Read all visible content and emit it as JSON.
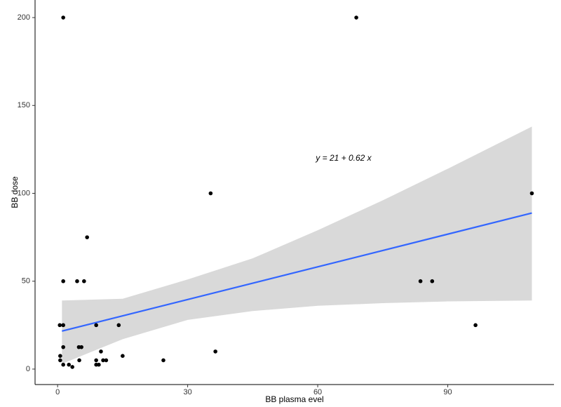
{
  "chart_data": {
    "type": "scatter",
    "xlabel": "BB plasma evel",
    "ylabel": "BB dose",
    "annotation": "y = 21 + 0.62 x",
    "color": "#000000",
    "x": [
      1.3,
      68.9,
      35.3,
      109.4,
      6.8,
      1.3,
      4.5,
      6.1,
      83.7,
      86.4,
      0.5,
      1.3,
      8.9,
      14.1,
      96.4,
      1.3,
      4.9,
      5.5,
      36.4,
      10,
      0.6,
      15,
      0.6,
      5,
      8.9,
      10.5,
      11.2,
      24.4,
      1.3,
      2.6,
      8.9,
      9.5,
      3.4
    ],
    "values": [
      200,
      200,
      100,
      100,
      75,
      50,
      50,
      50,
      50,
      50,
      25,
      25,
      25,
      25,
      25,
      12.5,
      12.5,
      12.5,
      10,
      10,
      7.5,
      7.5,
      5,
      5,
      5,
      5,
      5,
      5,
      2.5,
      2.5,
      2.5,
      2.5,
      1.2
    ],
    "fit": {
      "color": "#3366ff",
      "x": [
        1,
        109.4
      ],
      "values": [
        21.6,
        88.8
      ]
    },
    "band": {
      "color": "#d9d9d9",
      "x": [
        1,
        15,
        30,
        45,
        60,
        75,
        90,
        109.4
      ],
      "lower": [
        3,
        17,
        28,
        33,
        36,
        37.5,
        38.5,
        39
      ],
      "upper": [
        39,
        40,
        51,
        63,
        79,
        96,
        114,
        138
      ]
    },
    "xlim": [
      -5.2,
      114.5
    ],
    "ylim": [
      -8.8,
      210
    ],
    "xticks": [
      0,
      30,
      60,
      90
    ],
    "yticks": [
      0,
      50,
      100,
      150,
      200
    ],
    "grid": false
  }
}
